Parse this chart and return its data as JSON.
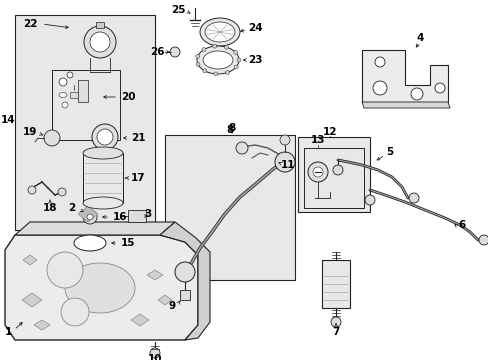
{
  "background_color": "#ffffff",
  "fig_width": 4.89,
  "fig_height": 3.6,
  "dpi": 100,
  "line_color": "#222222",
  "text_color": "#000000",
  "box_fill": "#e8e8e8"
}
